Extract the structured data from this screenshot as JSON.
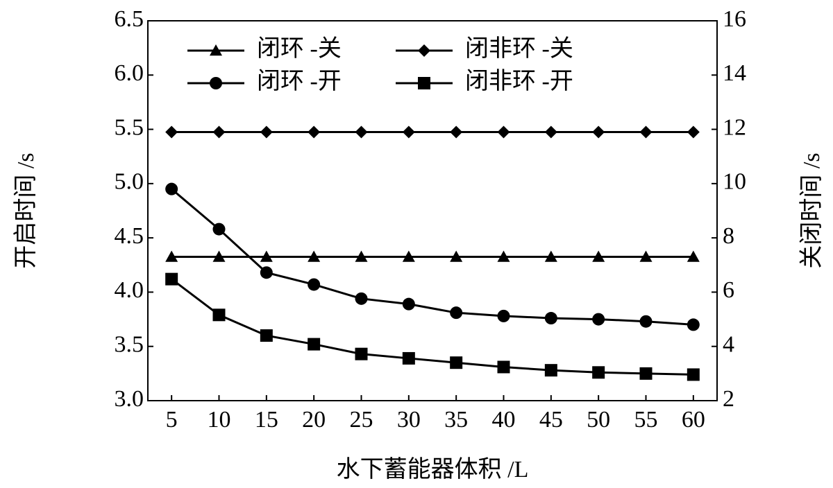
{
  "chart_data": {
    "type": "line",
    "x_label": "水下蓄能器体积 /L",
    "y_label": "开启时间 /s",
    "y2_label": "关闭时间 /s",
    "x": [
      5,
      10,
      15,
      20,
      25,
      30,
      35,
      40,
      45,
      50,
      55,
      60
    ],
    "xlim": [
      2.5,
      62.5
    ],
    "xticks": [
      5,
      10,
      15,
      20,
      25,
      30,
      35,
      40,
      45,
      50,
      55,
      60
    ],
    "ylim": [
      3.0,
      6.5
    ],
    "yticks": [
      {
        "value": 3.0,
        "label": "3.0"
      },
      3.5,
      {
        "value": 4.0,
        "label": "4.0"
      },
      4.5,
      {
        "value": 5.0,
        "label": "5.0"
      },
      5.5,
      {
        "value": 6.0,
        "label": "6.0"
      },
      6.5
    ],
    "y2lim": [
      2,
      16
    ],
    "y2ticks": [
      2,
      4,
      6,
      8,
      10,
      12,
      14,
      16
    ],
    "series": [
      {
        "name": "闭环 -关",
        "marker": "triangle",
        "color": "#000000",
        "axis": "y2",
        "values": [
          7.3,
          7.3,
          7.3,
          7.3,
          7.3,
          7.3,
          7.3,
          7.3,
          7.3,
          7.3,
          7.3,
          7.3
        ]
      },
      {
        "name": "闭非环 -关",
        "marker": "diamond",
        "color": "#000000",
        "axis": "y2",
        "values": [
          11.9,
          11.9,
          11.9,
          11.9,
          11.9,
          11.9,
          11.9,
          11.9,
          11.9,
          11.9,
          11.9,
          11.9
        ]
      },
      {
        "name": "闭环 -开",
        "marker": "circle",
        "color": "#000000",
        "values": [
          4.95,
          4.58,
          4.18,
          4.07,
          3.94,
          3.89,
          3.81,
          3.78,
          3.76,
          3.75,
          3.73,
          3.7
        ]
      },
      {
        "name": "闭非环 -开",
        "marker": "square",
        "color": "#000000",
        "values": [
          4.12,
          3.79,
          3.6,
          3.52,
          3.43,
          3.39,
          3.35,
          3.31,
          3.28,
          3.26,
          3.25,
          3.24
        ]
      }
    ]
  }
}
